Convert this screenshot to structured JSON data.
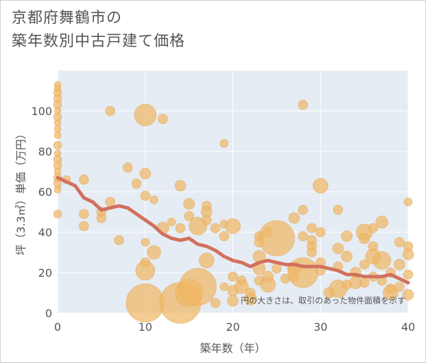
{
  "title": {
    "line1": "京都府舞鶴市の",
    "line2": "築年数別中古戸建て価格"
  },
  "note": "円の大きさは、取引のあった物件面積を示す",
  "colors": {
    "bubble": "#f0b765",
    "trend": "#d2705e",
    "plot_bg": "#e6ecf4",
    "grid": "#ffffff",
    "text": "#555555"
  },
  "chart_data": {
    "type": "scatter",
    "xlabel": "築年数（年）",
    "ylabel": "坪（3.3㎡）単価（万円）",
    "xlim": [
      0,
      40
    ],
    "ylim": [
      0,
      120
    ],
    "xticks": [
      0,
      10,
      20,
      30,
      40
    ],
    "yticks": [
      0,
      20,
      40,
      60,
      80,
      100
    ],
    "grid": true,
    "bubbles": [
      {
        "x": 0,
        "y": 113,
        "s": 5
      },
      {
        "x": 0,
        "y": 111,
        "s": 5
      },
      {
        "x": 0,
        "y": 109,
        "s": 6
      },
      {
        "x": 0,
        "y": 106,
        "s": 6
      },
      {
        "x": 0,
        "y": 103,
        "s": 6
      },
      {
        "x": 0,
        "y": 100,
        "s": 5
      },
      {
        "x": 0,
        "y": 97,
        "s": 6
      },
      {
        "x": 0,
        "y": 94,
        "s": 5
      },
      {
        "x": 0,
        "y": 91,
        "s": 5
      },
      {
        "x": 0,
        "y": 88,
        "s": 5
      },
      {
        "x": 0,
        "y": 83,
        "s": 6
      },
      {
        "x": 0,
        "y": 79,
        "s": 5
      },
      {
        "x": 0,
        "y": 76,
        "s": 6
      },
      {
        "x": 0,
        "y": 73,
        "s": 6
      },
      {
        "x": 0,
        "y": 70,
        "s": 5
      },
      {
        "x": 0,
        "y": 67,
        "s": 6
      },
      {
        "x": 0,
        "y": 64,
        "s": 6
      },
      {
        "x": 0,
        "y": 61,
        "s": 5
      },
      {
        "x": 0,
        "y": 49,
        "s": 6
      },
      {
        "x": 1,
        "y": 66,
        "s": 6
      },
      {
        "x": 3,
        "y": 66,
        "s": 7
      },
      {
        "x": 3,
        "y": 49,
        "s": 7
      },
      {
        "x": 3,
        "y": 43,
        "s": 7
      },
      {
        "x": 5,
        "y": 50,
        "s": 7
      },
      {
        "x": 5,
        "y": 47,
        "s": 7
      },
      {
        "x": 6,
        "y": 55,
        "s": 7
      },
      {
        "x": 6,
        "y": 100,
        "s": 7
      },
      {
        "x": 7,
        "y": 36,
        "s": 7
      },
      {
        "x": 8,
        "y": 72,
        "s": 7
      },
      {
        "x": 9,
        "y": 64,
        "s": 7
      },
      {
        "x": 10,
        "y": 98,
        "s": 16
      },
      {
        "x": 10,
        "y": 69,
        "s": 8
      },
      {
        "x": 10,
        "y": 58,
        "s": 7
      },
      {
        "x": 10,
        "y": 35,
        "s": 6
      },
      {
        "x": 10,
        "y": 25,
        "s": 7
      },
      {
        "x": 10,
        "y": 21,
        "s": 14
      },
      {
        "x": 10,
        "y": 5,
        "s": 28
      },
      {
        "x": 11,
        "y": 30,
        "s": 10
      },
      {
        "x": 11,
        "y": 56,
        "s": 6
      },
      {
        "x": 12,
        "y": 96,
        "s": 7
      },
      {
        "x": 12,
        "y": 42,
        "s": 9
      },
      {
        "x": 13,
        "y": 45,
        "s": 6
      },
      {
        "x": 14,
        "y": 63,
        "s": 8
      },
      {
        "x": 14,
        "y": 42,
        "s": 7
      },
      {
        "x": 14,
        "y": 5,
        "s": 30
      },
      {
        "x": 15,
        "y": 10,
        "s": 20
      },
      {
        "x": 15,
        "y": 54,
        "s": 8
      },
      {
        "x": 15,
        "y": 48,
        "s": 7
      },
      {
        "x": 16,
        "y": 43,
        "s": 13
      },
      {
        "x": 16,
        "y": 13,
        "s": 27
      },
      {
        "x": 17,
        "y": 53,
        "s": 7
      },
      {
        "x": 17,
        "y": 50,
        "s": 8
      },
      {
        "x": 17,
        "y": 46,
        "s": 7
      },
      {
        "x": 17,
        "y": 26,
        "s": 11
      },
      {
        "x": 18,
        "y": 42,
        "s": 7
      },
      {
        "x": 18,
        "y": 5,
        "s": 7
      },
      {
        "x": 19,
        "y": 84,
        "s": 6
      },
      {
        "x": 19,
        "y": 44,
        "s": 6
      },
      {
        "x": 19,
        "y": 38,
        "s": 7
      },
      {
        "x": 19,
        "y": 13,
        "s": 6
      },
      {
        "x": 20,
        "y": 43,
        "s": 11
      },
      {
        "x": 20,
        "y": 18,
        "s": 7
      },
      {
        "x": 20,
        "y": 11,
        "s": 8
      },
      {
        "x": 20,
        "y": 6,
        "s": 8
      },
      {
        "x": 21,
        "y": 16,
        "s": 7
      },
      {
        "x": 21,
        "y": 13,
        "s": 10
      },
      {
        "x": 22,
        "y": 7,
        "s": 9
      },
      {
        "x": 22,
        "y": 10,
        "s": 7
      },
      {
        "x": 23,
        "y": 38,
        "s": 7
      },
      {
        "x": 23,
        "y": 35,
        "s": 7
      },
      {
        "x": 23,
        "y": 28,
        "s": 9
      },
      {
        "x": 23,
        "y": 22,
        "s": 9
      },
      {
        "x": 23,
        "y": 16,
        "s": 7
      },
      {
        "x": 24,
        "y": 40,
        "s": 7
      },
      {
        "x": 24,
        "y": 14,
        "s": 11
      },
      {
        "x": 24,
        "y": 18,
        "s": 8
      },
      {
        "x": 25,
        "y": 37,
        "s": 26
      },
      {
        "x": 25,
        "y": 22,
        "s": 7
      },
      {
        "x": 26,
        "y": 17,
        "s": 7
      },
      {
        "x": 27,
        "y": 47,
        "s": 8
      },
      {
        "x": 27,
        "y": 22,
        "s": 10
      },
      {
        "x": 27,
        "y": 18,
        "s": 7
      },
      {
        "x": 28,
        "y": 103,
        "s": 7
      },
      {
        "x": 28,
        "y": 51,
        "s": 7
      },
      {
        "x": 28,
        "y": 38,
        "s": 7
      },
      {
        "x": 28,
        "y": 20,
        "s": 22
      },
      {
        "x": 29,
        "y": 42,
        "s": 7
      },
      {
        "x": 29,
        "y": 36,
        "s": 7
      },
      {
        "x": 29,
        "y": 33,
        "s": 7
      },
      {
        "x": 29,
        "y": 30,
        "s": 7
      },
      {
        "x": 30,
        "y": 63,
        "s": 11
      },
      {
        "x": 30,
        "y": 40,
        "s": 7
      },
      {
        "x": 30,
        "y": 25,
        "s": 7
      },
      {
        "x": 30,
        "y": 21,
        "s": 7
      },
      {
        "x": 31,
        "y": 10,
        "s": 8
      },
      {
        "x": 32,
        "y": 51,
        "s": 7
      },
      {
        "x": 32,
        "y": 32,
        "s": 8
      },
      {
        "x": 32,
        "y": 23,
        "s": 7
      },
      {
        "x": 32,
        "y": 12,
        "s": 13
      },
      {
        "x": 33,
        "y": 38,
        "s": 8
      },
      {
        "x": 33,
        "y": 28,
        "s": 8
      },
      {
        "x": 33,
        "y": 14,
        "s": 7
      },
      {
        "x": 34,
        "y": 20,
        "s": 8
      },
      {
        "x": 34,
        "y": 15,
        "s": 9
      },
      {
        "x": 35,
        "y": 40,
        "s": 12
      },
      {
        "x": 35,
        "y": 37,
        "s": 8
      },
      {
        "x": 35,
        "y": 24,
        "s": 7
      },
      {
        "x": 35,
        "y": 15,
        "s": 7
      },
      {
        "x": 36,
        "y": 42,
        "s": 7
      },
      {
        "x": 36,
        "y": 33,
        "s": 7
      },
      {
        "x": 36,
        "y": 28,
        "s": 11
      },
      {
        "x": 36,
        "y": 18,
        "s": 7
      },
      {
        "x": 37,
        "y": 45,
        "s": 9
      },
      {
        "x": 37,
        "y": 26,
        "s": 13
      },
      {
        "x": 37,
        "y": 16,
        "s": 7
      },
      {
        "x": 38,
        "y": 20,
        "s": 7
      },
      {
        "x": 38,
        "y": 12,
        "s": 7
      },
      {
        "x": 38,
        "y": 10,
        "s": 11
      },
      {
        "x": 39,
        "y": 35,
        "s": 7
      },
      {
        "x": 39,
        "y": 24,
        "s": 8
      },
      {
        "x": 39,
        "y": 13,
        "s": 7
      },
      {
        "x": 40,
        "y": 55,
        "s": 6
      },
      {
        "x": 40,
        "y": 33,
        "s": 7
      },
      {
        "x": 40,
        "y": 29,
        "s": 8
      },
      {
        "x": 40,
        "y": 19,
        "s": 7
      },
      {
        "x": 40,
        "y": 9,
        "s": 8
      }
    ],
    "trend": {
      "x": [
        0,
        1,
        2,
        3,
        4,
        5,
        6,
        7,
        8,
        9,
        10,
        11,
        12,
        13,
        14,
        15,
        16,
        17,
        18,
        19,
        20,
        21,
        22,
        23,
        24,
        25,
        26,
        27,
        28,
        29,
        30,
        31,
        32,
        33,
        34,
        35,
        36,
        37,
        38,
        39,
        40
      ],
      "y": [
        67,
        65,
        63,
        57,
        55,
        51,
        52,
        53,
        52,
        49,
        46,
        43,
        39,
        37,
        36,
        37,
        34,
        33,
        31,
        28,
        26,
        25,
        23,
        25,
        26,
        25,
        24,
        24,
        23,
        23,
        23,
        22,
        21,
        19,
        19,
        18,
        18,
        18,
        19,
        17,
        15
      ]
    }
  }
}
